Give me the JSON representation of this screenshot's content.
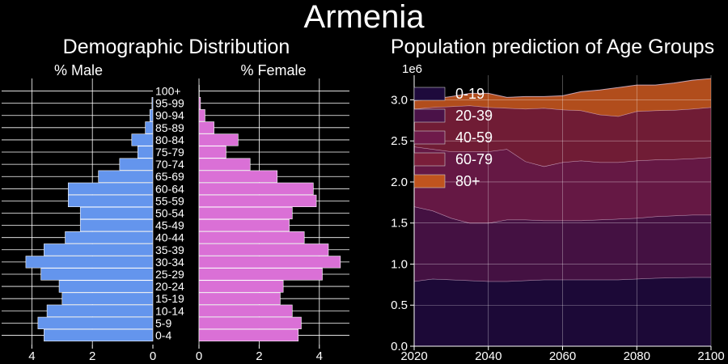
{
  "figure": {
    "title": "Armenia"
  },
  "colors": {
    "background": "#000000",
    "male": "#6495ED",
    "female": "#DA70D6",
    "grid": "#ffffff"
  },
  "chart_data": [
    {
      "type": "bar",
      "orientation": "horizontal",
      "title": "Demographic Distribution",
      "male_label": "% Male",
      "female_label": "% Female",
      "categories": [
        "0-4",
        "5-9",
        "10-14",
        "15-19",
        "20-24",
        "25-29",
        "30-34",
        "35-39",
        "40-44",
        "45-49",
        "50-54",
        "55-59",
        "60-64",
        "65-69",
        "70-74",
        "75-79",
        "80-84",
        "85-89",
        "90-94",
        "95-99",
        "100+"
      ],
      "series": [
        {
          "name": "% Male",
          "values": [
            3.6,
            3.8,
            3.5,
            3.0,
            3.1,
            3.7,
            4.2,
            3.6,
            2.9,
            2.4,
            2.4,
            2.8,
            2.8,
            1.8,
            1.1,
            0.5,
            0.7,
            0.25,
            0.1,
            0.03,
            0.0
          ]
        },
        {
          "name": "% Female",
          "values": [
            3.3,
            3.4,
            3.1,
            2.7,
            2.8,
            4.1,
            4.7,
            4.3,
            3.5,
            3.0,
            3.1,
            3.9,
            3.8,
            2.6,
            1.7,
            0.9,
            1.3,
            0.5,
            0.2,
            0.05,
            0.01
          ]
        }
      ],
      "xlim_male": [
        5,
        0
      ],
      "xlim_female": [
        0,
        5
      ],
      "xticks_male": [
        "4",
        "2",
        "0"
      ],
      "xticks_female": [
        "0",
        "2",
        "4"
      ],
      "grid": true
    },
    {
      "type": "area",
      "stacked": true,
      "title": "Population prediction of Age Groups",
      "x": [
        2020,
        2025,
        2030,
        2035,
        2040,
        2045,
        2050,
        2055,
        2060,
        2065,
        2070,
        2075,
        2080,
        2085,
        2090,
        2095,
        2100
      ],
      "series": [
        {
          "name": "0-19",
          "color": "#1e0a3c",
          "values": [
            790000,
            820000,
            810000,
            800000,
            790000,
            790000,
            800000,
            810000,
            810000,
            810000,
            810000,
            810000,
            820000,
            830000,
            835000,
            840000,
            840000
          ]
        },
        {
          "name": "20-39",
          "color": "#4a1248",
          "values": [
            910000,
            830000,
            750000,
            700000,
            710000,
            750000,
            740000,
            720000,
            720000,
            720000,
            730000,
            740000,
            740000,
            750000,
            755000,
            760000,
            760000
          ]
        },
        {
          "name": "40-59",
          "color": "#6e1a4a",
          "values": [
            730000,
            750000,
            810000,
            870000,
            870000,
            860000,
            710000,
            660000,
            710000,
            730000,
            700000,
            690000,
            700000,
            690000,
            685000,
            685000,
            700000
          ]
        },
        {
          "name": "60-79",
          "color": "#7a1e3a",
          "values": [
            460000,
            510000,
            550000,
            560000,
            540000,
            500000,
            640000,
            710000,
            640000,
            610000,
            580000,
            560000,
            600000,
            600000,
            600000,
            605000,
            610000
          ]
        },
        {
          "name": "80+",
          "color": "#c0541e",
          "values": [
            100000,
            100000,
            120000,
            150000,
            170000,
            130000,
            150000,
            140000,
            170000,
            230000,
            300000,
            350000,
            320000,
            310000,
            330000,
            350000,
            350000
          ]
        }
      ],
      "y_multiplier_label": "1e6",
      "xlim": [
        2020,
        2100
      ],
      "ylim": [
        0,
        3300000
      ],
      "xticks": [
        "2020",
        "2040",
        "2060",
        "2080",
        "2100"
      ],
      "yticks": [
        "0.0",
        "0.5",
        "1.0",
        "1.5",
        "2.0",
        "2.5",
        "3.0"
      ],
      "legend": "top-left",
      "grid": true
    }
  ]
}
